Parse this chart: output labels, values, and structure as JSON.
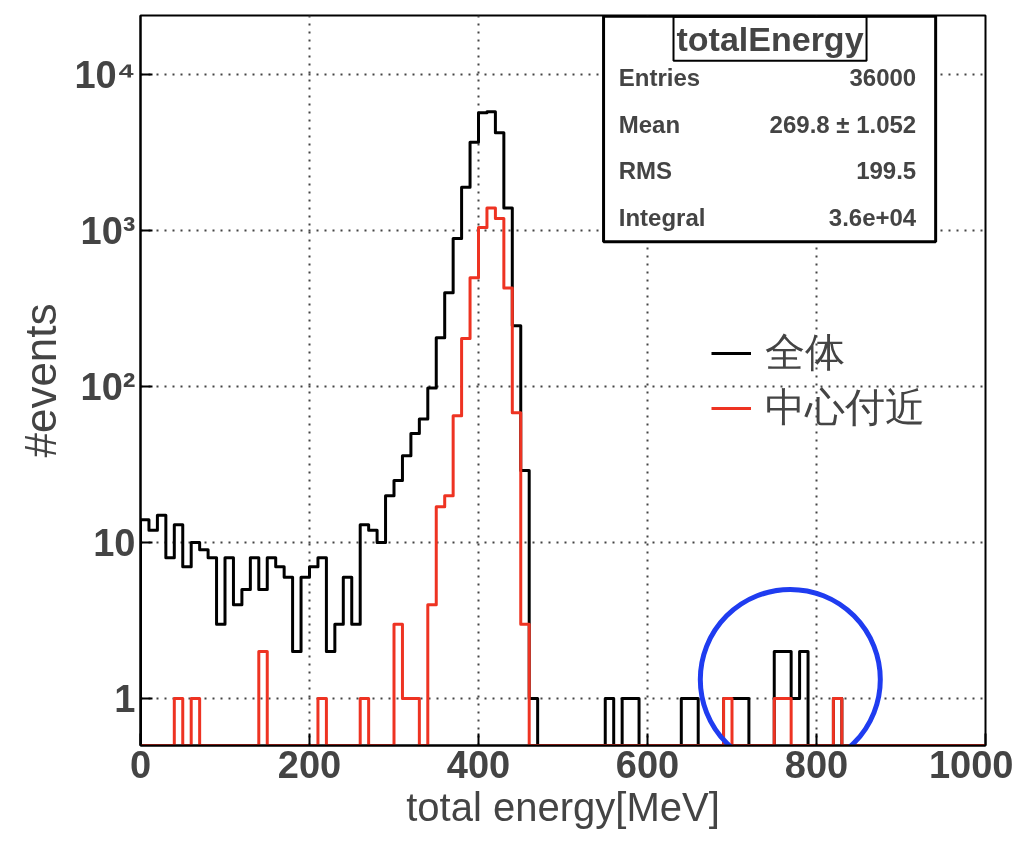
{
  "chart_data": {
    "type": "histogram",
    "xlabel": "total energy[MeV]",
    "ylabel": "#events",
    "bins": [
      0,
      10,
      20,
      30,
      40,
      50,
      60,
      70,
      80,
      90,
      100,
      110,
      120,
      130,
      140,
      150,
      160,
      170,
      180,
      190,
      200,
      210,
      220,
      230,
      240,
      250,
      260,
      270,
      280,
      290,
      300,
      310,
      320,
      330,
      340,
      350,
      360,
      370,
      380,
      390,
      400,
      410,
      420,
      430,
      440,
      450,
      460,
      470,
      480,
      490,
      500,
      510,
      520,
      530,
      540,
      550,
      560,
      570,
      580,
      590,
      600,
      610,
      620,
      630,
      640,
      650,
      660,
      670,
      680,
      690,
      700,
      710,
      720,
      730,
      740,
      750,
      760,
      770,
      780,
      790,
      800,
      810,
      820,
      830,
      840,
      850,
      860,
      870,
      880,
      890,
      900,
      910,
      920,
      930,
      940,
      950,
      960,
      970,
      980,
      990,
      1000
    ],
    "series": [
      {
        "name": "全体",
        "color": "#000000",
        "values": [
          14,
          12,
          15,
          8,
          13,
          7,
          10,
          9,
          8,
          3,
          8,
          4,
          5,
          8,
          5,
          8,
          7,
          6,
          2,
          6,
          7,
          8,
          2,
          3,
          6,
          3,
          13,
          12,
          10,
          20,
          25,
          36,
          50,
          62,
          98,
          206,
          400,
          890,
          1900,
          3700,
          5700,
          5800,
          4250,
          1400,
          246,
          29,
          1,
          null,
          null,
          null,
          null,
          null,
          null,
          null,
          null,
          1,
          null,
          1,
          1,
          null,
          null,
          null,
          null,
          null,
          1,
          1,
          null,
          null,
          null,
          1,
          1,
          1,
          null,
          null,
          null,
          2,
          2,
          1,
          2,
          null,
          null,
          null,
          1,
          null,
          null,
          null,
          null,
          null,
          null,
          null,
          null,
          null,
          null,
          null,
          null,
          null,
          null,
          null,
          null,
          null
        ]
      },
      {
        "name": "中心付近",
        "color": "#ee3322",
        "values": [
          null,
          null,
          null,
          null,
          1,
          null,
          1,
          null,
          null,
          null,
          null,
          null,
          null,
          null,
          2,
          null,
          null,
          null,
          null,
          null,
          null,
          1,
          null,
          null,
          null,
          null,
          1,
          null,
          null,
          null,
          3,
          1,
          1,
          null,
          4,
          17,
          20,
          65,
          204,
          500,
          1050,
          1400,
          1200,
          430,
          68,
          3,
          null,
          null,
          null,
          null,
          null,
          null,
          null,
          null,
          null,
          null,
          null,
          null,
          null,
          null,
          null,
          null,
          null,
          null,
          null,
          null,
          null,
          null,
          null,
          1,
          null,
          null,
          null,
          null,
          null,
          1,
          1,
          null,
          null,
          null,
          null,
          null,
          1,
          null,
          null,
          null,
          null,
          null,
          null,
          null,
          null,
          null,
          null,
          null,
          null,
          null,
          null,
          null,
          null,
          null
        ]
      }
    ],
    "annotations": [
      "totalEnergy",
      "Entries",
      "36000",
      "Mean",
      "269.8 ± 1.052",
      "RMS",
      "199.5",
      "Integral",
      "3.6e+04"
    ],
    "xlim": [
      0,
      1000
    ],
    "ylim": [
      0.5,
      24000
    ],
    "log": true,
    "xticks": [
      0,
      200,
      400,
      600,
      800,
      1000
    ],
    "yticks": [
      1,
      10,
      {
        "value": 100,
        "label": "10²"
      },
      {
        "value": 1000,
        "label": "10³"
      },
      {
        "value": 10000,
        "label": "10⁴"
      }
    ],
    "grid": true,
    "legend": "right"
  }
}
